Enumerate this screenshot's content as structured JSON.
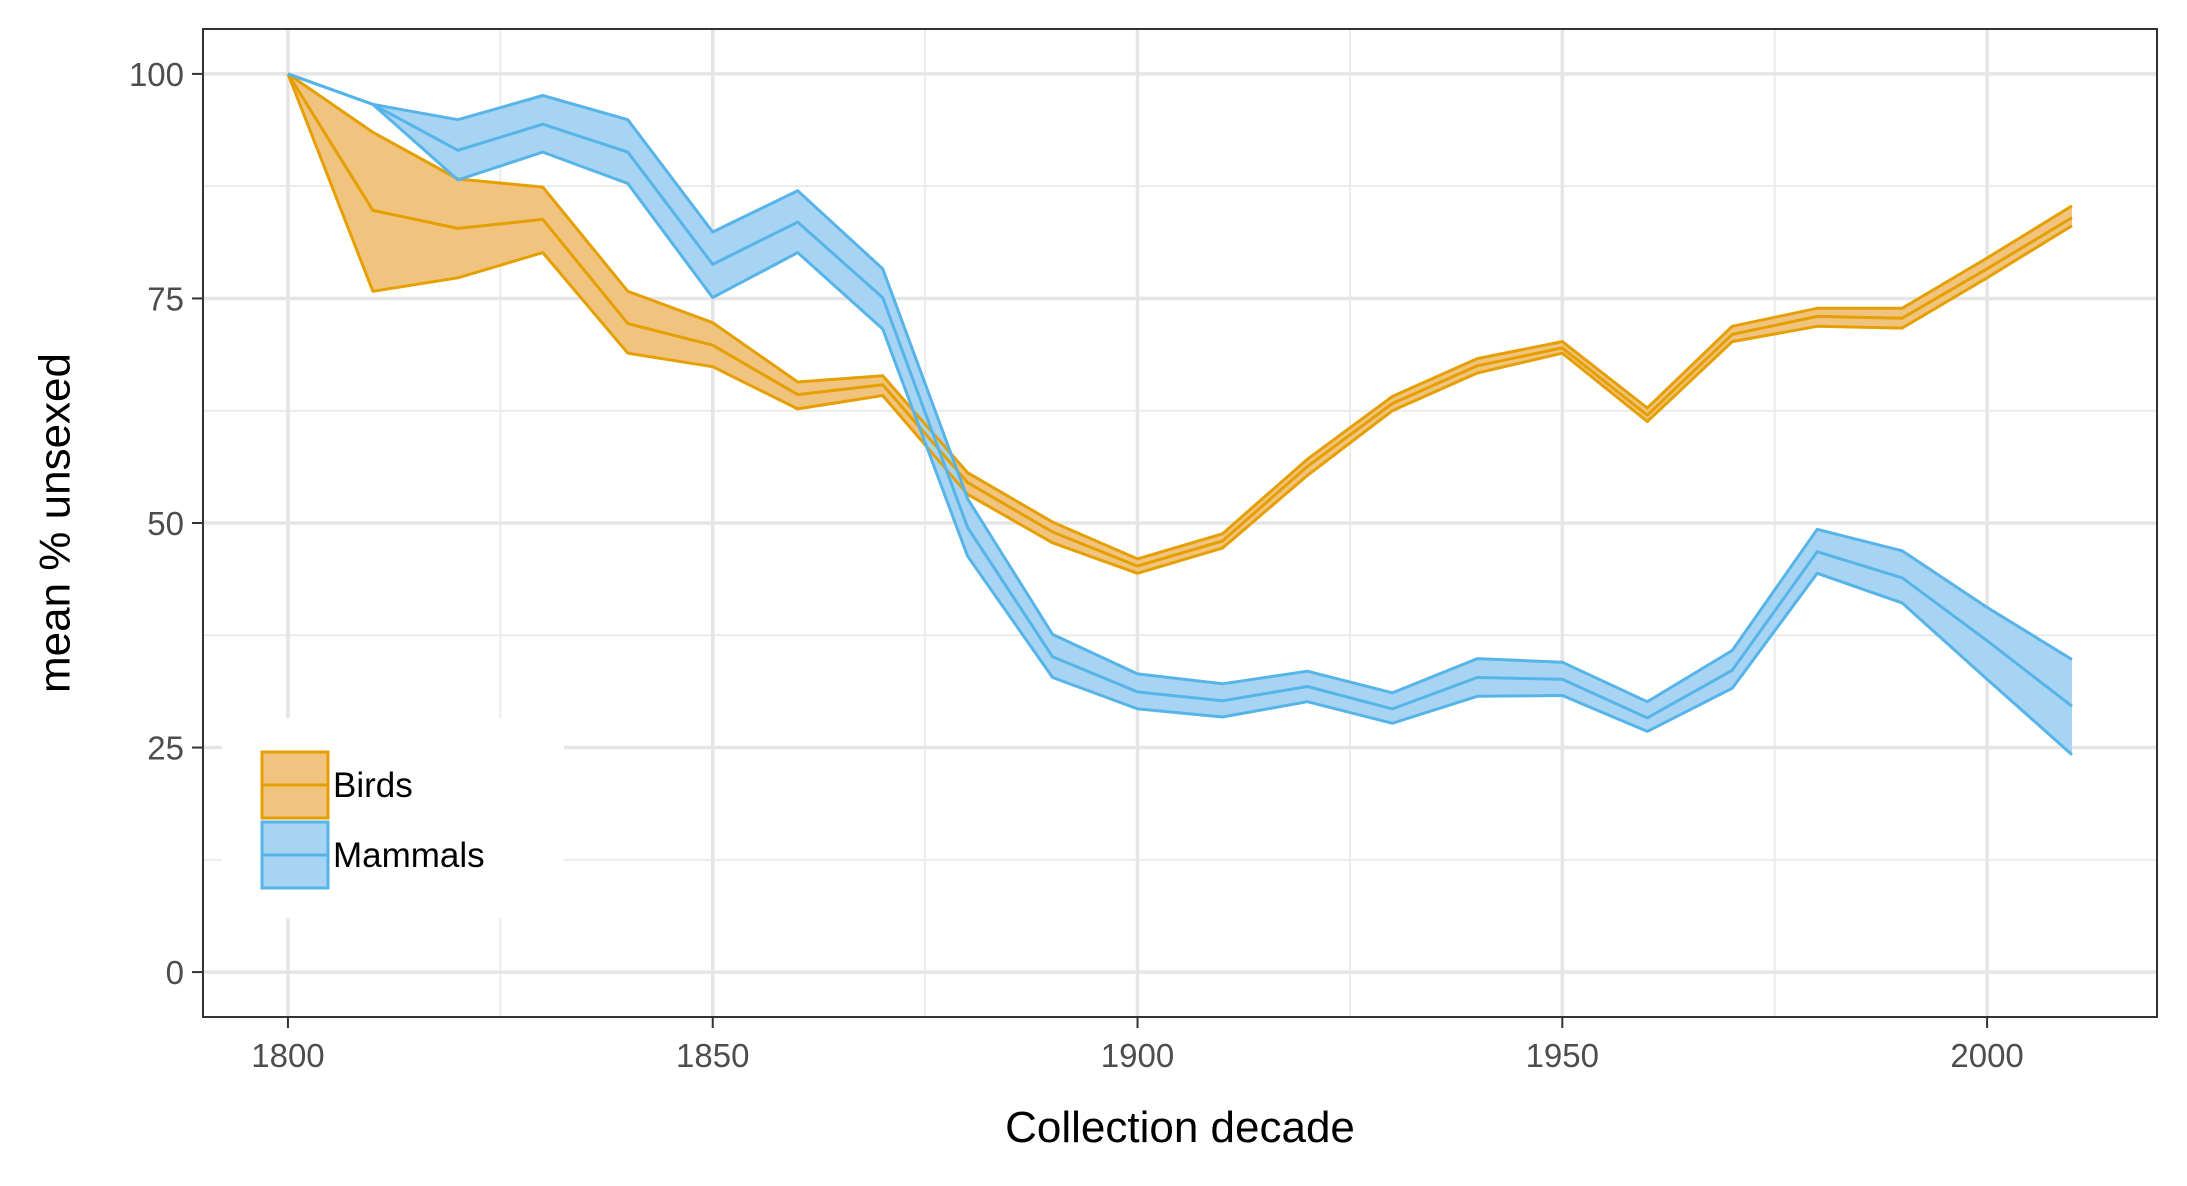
{
  "chart_data": {
    "type": "line",
    "title": "",
    "xlabel": "Collection decade",
    "ylabel": "mean % unsexed",
    "xlim": [
      1790,
      2020
    ],
    "ylim": [
      -5,
      105
    ],
    "xticks": [
      1800,
      1850,
      1900,
      1950,
      2000
    ],
    "xtick_labels": [
      "1800",
      "1850",
      "1900",
      "1950",
      "2000"
    ],
    "yticks": [
      0,
      25,
      50,
      75,
      100
    ],
    "ytick_labels": [
      "0",
      "25",
      "50",
      "75",
      "100"
    ],
    "grid": true,
    "legend_position": "bottom-left",
    "series": [
      {
        "name": "Birds",
        "color": "#e69f00",
        "fill": "#f0c47e",
        "x": [
          1800,
          1810,
          1820,
          1830,
          1840,
          1850,
          1860,
          1870,
          1880,
          1890,
          1900,
          1910,
          1920,
          1930,
          1940,
          1950,
          1960,
          1970,
          1980,
          1990,
          2000,
          2010
        ],
        "mean": [
          100,
          84.8,
          82.8,
          83.8,
          72.2,
          69.8,
          64.3,
          65.4,
          54.5,
          49.0,
          45.2,
          48.0,
          56.3,
          63.3,
          67.5,
          69.5,
          62.0,
          71.0,
          73.0,
          72.8,
          78.3,
          84.0
        ],
        "lower": [
          100,
          75.8,
          77.3,
          80.1,
          68.9,
          67.4,
          62.7,
          64.2,
          53.2,
          47.8,
          44.4,
          47.2,
          55.3,
          62.5,
          66.7,
          68.9,
          61.3,
          70.2,
          71.9,
          71.7,
          77.3,
          83.1
        ],
        "upper": [
          100,
          93.5,
          88.3,
          87.4,
          75.8,
          72.3,
          65.7,
          66.4,
          55.6,
          50.1,
          46.0,
          48.8,
          57.1,
          64.1,
          68.3,
          70.2,
          62.8,
          71.9,
          73.9,
          73.9,
          79.5,
          85.3
        ]
      },
      {
        "name": "Mammals",
        "color": "#56b4e9",
        "fill": "#a6d4f2",
        "x": [
          1800,
          1810,
          1820,
          1830,
          1840,
          1850,
          1860,
          1870,
          1880,
          1890,
          1900,
          1910,
          1920,
          1930,
          1940,
          1950,
          1960,
          1970,
          1980,
          1990,
          2000,
          2010
        ],
        "mean": [
          100,
          96.6,
          91.5,
          94.4,
          91.3,
          78.8,
          83.5,
          75.1,
          49.5,
          35.1,
          31.2,
          30.2,
          31.8,
          29.3,
          32.8,
          32.6,
          28.3,
          33.6,
          46.8,
          43.9,
          36.9,
          29.6
        ],
        "lower": [
          100,
          96.6,
          88.2,
          91.3,
          87.8,
          75.1,
          80.1,
          71.6,
          46.3,
          32.8,
          29.3,
          28.4,
          30.1,
          27.7,
          30.7,
          30.8,
          26.8,
          31.6,
          44.4,
          41.1,
          32.6,
          24.2
        ],
        "upper": [
          100,
          96.6,
          94.9,
          97.6,
          94.9,
          82.4,
          87.0,
          78.3,
          52.7,
          37.6,
          33.2,
          32.1,
          33.5,
          31.1,
          34.9,
          34.5,
          30.1,
          35.8,
          49.3,
          46.9,
          40.6,
          34.8
        ]
      }
    ]
  }
}
